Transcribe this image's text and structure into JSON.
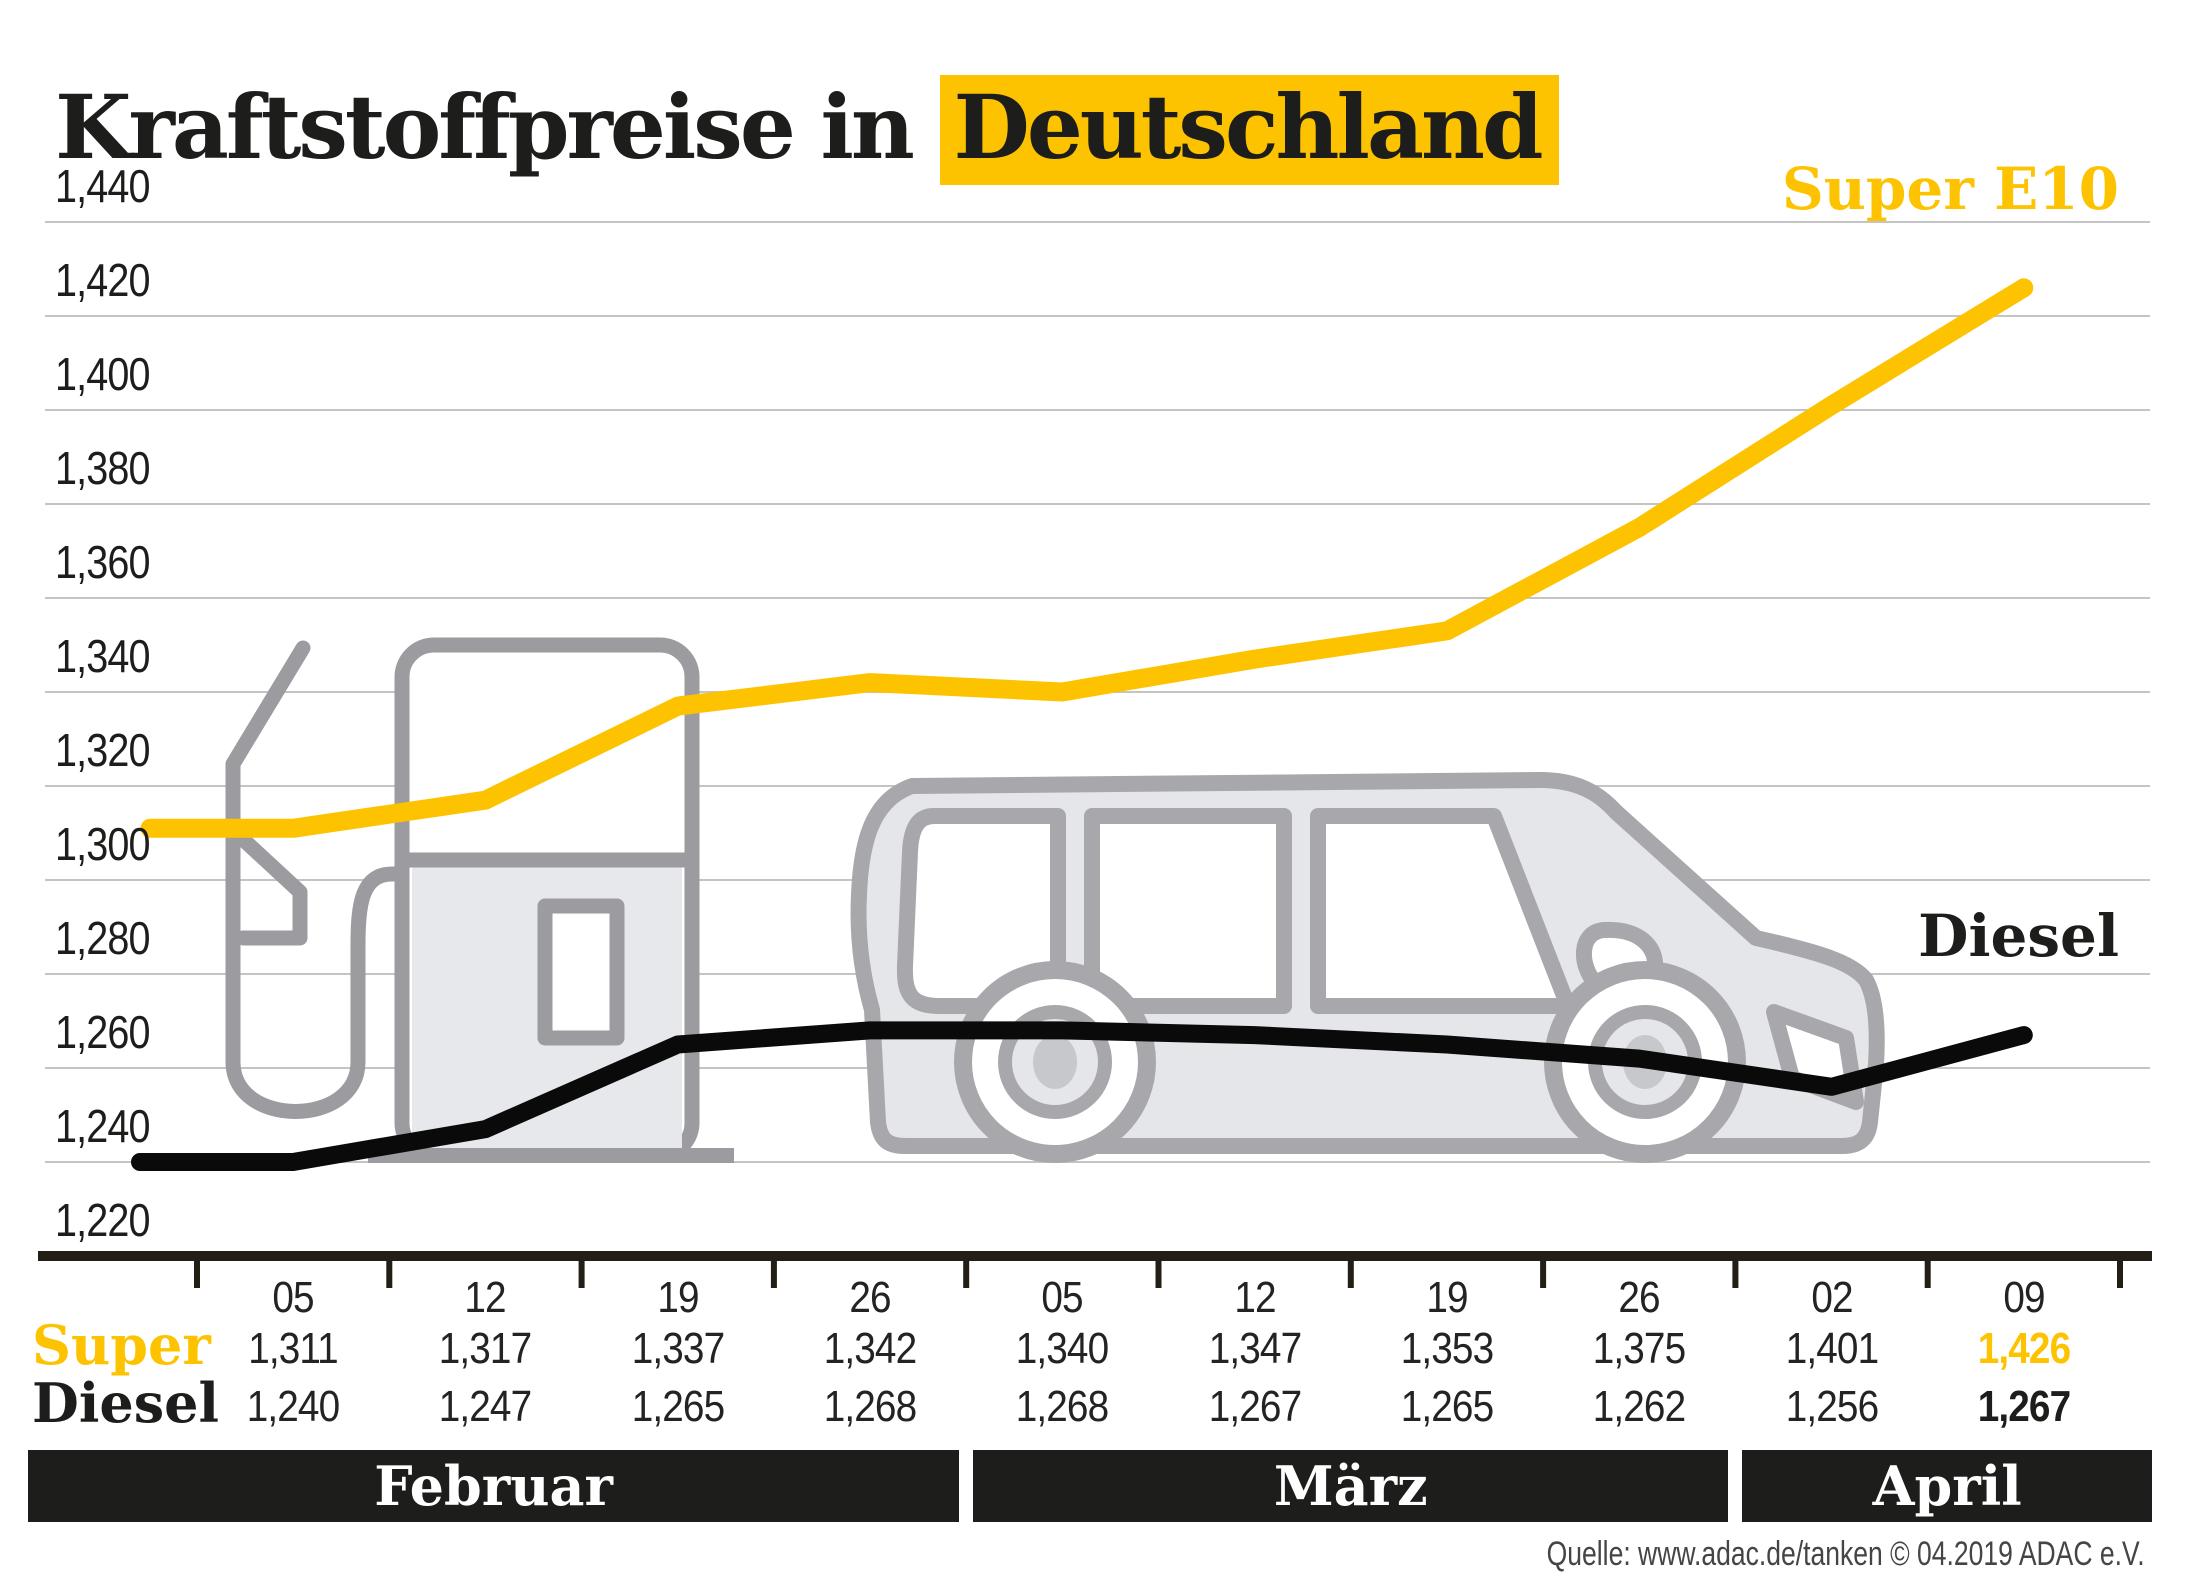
{
  "title": {
    "prefix": "Kraftstoffpreise in ",
    "highlight": "Deutschland"
  },
  "labels": {
    "super_series": "Super E10",
    "diesel_series": "Diesel"
  },
  "source": {
    "text": "Quelle: www.adac.de/tanken   © 04.2019  ADAC e.V."
  },
  "colors": {
    "brand_yellow": "#fdc300",
    "ink": "#1d1d1b",
    "line_diesel": "#0a0a0a",
    "gridline": "#c4c4c4",
    "axis": "#231f16",
    "band_bg": "#1d1d1b",
    "band_text": "#ffffff",
    "graphic_gray": "#9b9ba0",
    "graphic_fill": "#e6e8eb"
  },
  "chart_data": {
    "type": "line",
    "title": "Kraftstoffpreise in Deutschland",
    "x_tick_labels": [
      "05",
      "12",
      "19",
      "26",
      "05",
      "12",
      "19",
      "26",
      "02",
      "09"
    ],
    "y_tick_labels": [
      "1,440",
      "1,420",
      "1,400",
      "1,380",
      "1,360",
      "1,340",
      "1,320",
      "1,300",
      "1,280",
      "1,260",
      "1,240",
      "1,220"
    ],
    "ylim": [
      1.22,
      1.44
    ],
    "y_step": 0.02,
    "grid": "horizontal",
    "legend_position": "line-end labels (Super E10 top right, Diesel right)",
    "months": [
      {
        "label": "Februar",
        "columns": 4
      },
      {
        "label": "März",
        "columns": 4
      },
      {
        "label": "April",
        "columns": 2
      }
    ],
    "series": [
      {
        "name": "Super",
        "line_label": "Super E10",
        "color": "#fdc300",
        "values": [
          1.311,
          1.317,
          1.337,
          1.342,
          1.34,
          1.347,
          1.353,
          1.375,
          1.401,
          1.426
        ],
        "display": [
          "1,311",
          "1,317",
          "1,337",
          "1,342",
          "1,340",
          "1,347",
          "1,353",
          "1,375",
          "1,401",
          "1,426"
        ]
      },
      {
        "name": "Diesel",
        "line_label": "Diesel",
        "color": "#0a0a0a",
        "values": [
          1.24,
          1.247,
          1.265,
          1.268,
          1.268,
          1.267,
          1.265,
          1.262,
          1.256,
          1.267
        ],
        "display": [
          "1,240",
          "1,247",
          "1,265",
          "1,268",
          "1,268",
          "1,267",
          "1,265",
          "1,262",
          "1,256",
          "1,267"
        ]
      }
    ]
  },
  "table": {
    "rows": [
      {
        "label": "Super",
        "values": [
          "1,311",
          "1,317",
          "1,337",
          "1,342",
          "1,340",
          "1,347",
          "1,353",
          "1,375",
          "1,401",
          "1,426"
        ],
        "last_value_highlight": "yellow-bold"
      },
      {
        "label": "Diesel",
        "values": [
          "1,240",
          "1,247",
          "1,265",
          "1,268",
          "1,268",
          "1,267",
          "1,265",
          "1,262",
          "1,256",
          "1,267"
        ],
        "last_value_highlight": "bold"
      }
    ]
  }
}
